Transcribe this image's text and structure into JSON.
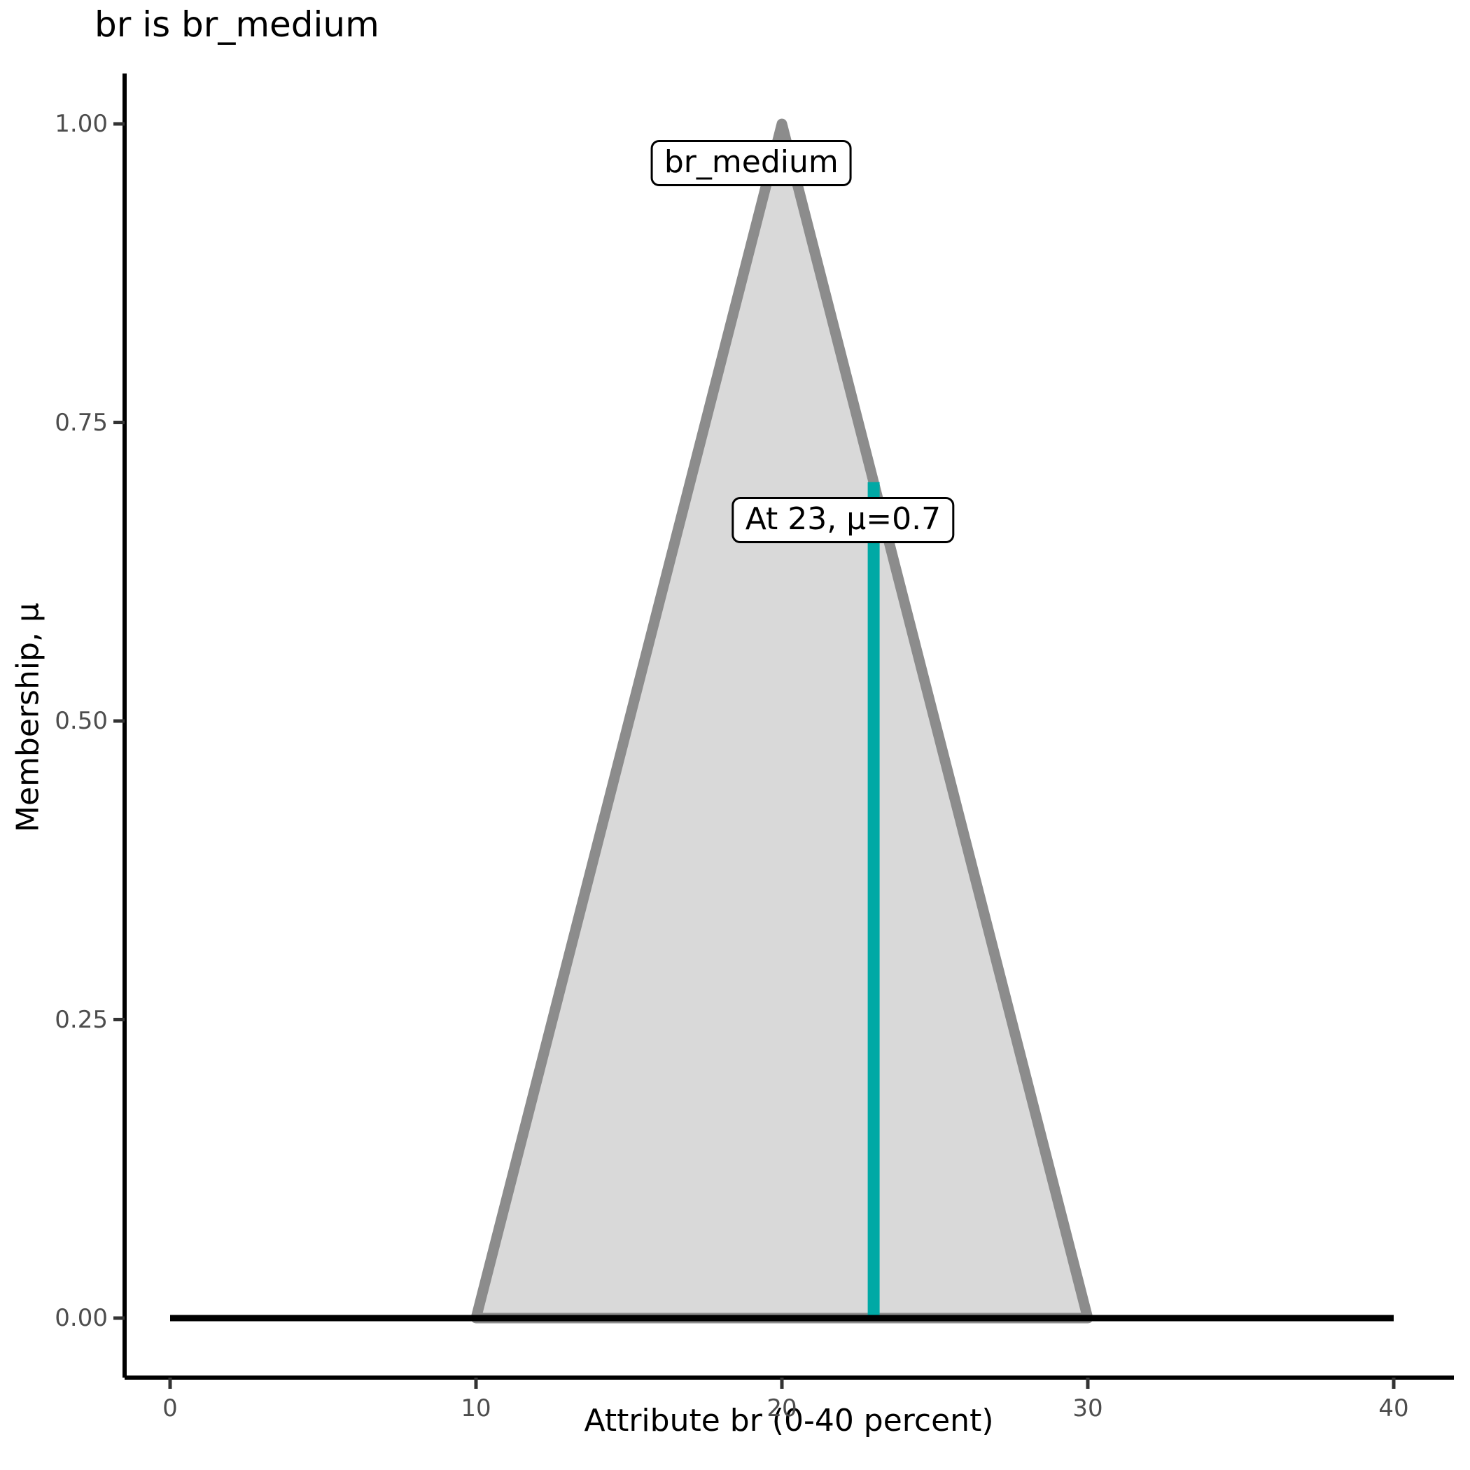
{
  "title": "br is br_medium",
  "chart_data": {
    "type": "area",
    "title": "br is br_medium",
    "xlabel": "Attribute br (0-40 percent)",
    "ylabel": "Membership, μ",
    "xlim": [
      0,
      40
    ],
    "ylim": [
      0,
      1
    ],
    "grid": false,
    "legend": false,
    "x_ticks": {
      "values": [
        0,
        10,
        20,
        30,
        40
      ],
      "labels": [
        "0",
        "10",
        "20",
        "30",
        "40"
      ]
    },
    "y_ticks": {
      "values": [
        0,
        0.25,
        0.5,
        0.75,
        1.0
      ],
      "labels": [
        "0.00",
        "0.25",
        "0.50",
        "0.75",
        "1.00"
      ]
    },
    "series": [
      {
        "name": "br_medium",
        "kind": "filled-triangle-membership-function",
        "points": [
          [
            10,
            0
          ],
          [
            20,
            1
          ],
          [
            30,
            0
          ]
        ],
        "fill": "#D9D9D9",
        "stroke": "#8C8C8C"
      }
    ],
    "baseline": {
      "kind": "horizontal-segment",
      "from": [
        0,
        0
      ],
      "to": [
        40,
        0
      ],
      "color": "#000000",
      "meaning": "membership 0 across universe 0-40"
    },
    "crisp_marker": {
      "kind": "vertical-line",
      "x": 23,
      "mu": 0.7,
      "color": "#00A9A5"
    },
    "annotations": [
      {
        "id": "set-label",
        "text": "br_medium",
        "anchor_x": 19,
        "anchor_y": 0.967
      },
      {
        "id": "crisp-label",
        "text": "At 23, μ=0.7",
        "anchor_x": 22,
        "anchor_y": 0.668
      }
    ],
    "colors": {
      "membership_fill": "#D9D9D9",
      "membership_stroke": "#8C8C8C",
      "crisp_line": "#00A9A5",
      "baseline": "#000000",
      "axis_line": "#000000",
      "tick_mark": "#333333",
      "tick_label": "#4D4D4D",
      "text": "#000000"
    }
  }
}
